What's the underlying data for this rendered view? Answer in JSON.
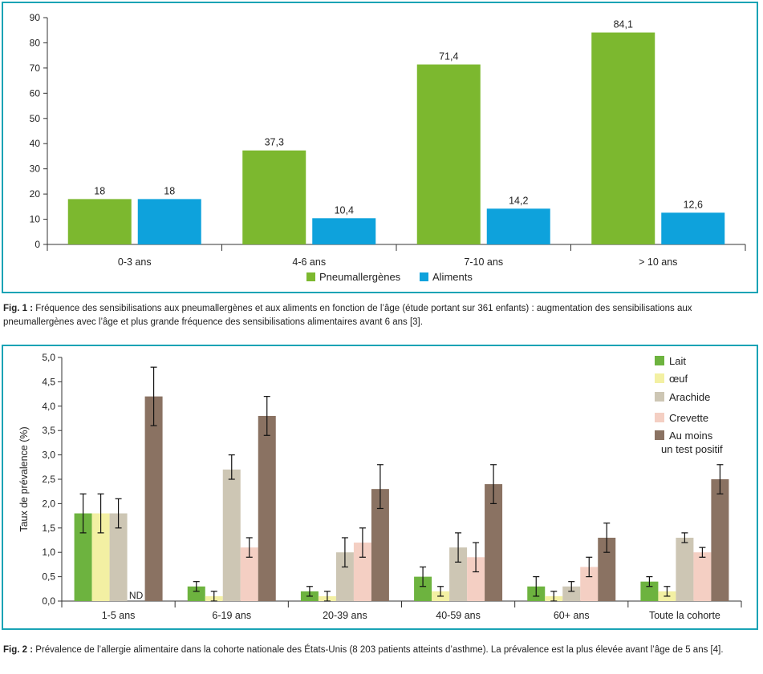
{
  "chart_data": [
    {
      "type": "bar",
      "categories": [
        "0-3 ans",
        "4-6 ans",
        "7-10 ans",
        "> 10 ans"
      ],
      "series": [
        {
          "name": "Pneumallergènes",
          "values": [
            18,
            37.3,
            71.4,
            84.1
          ],
          "labels": [
            "18",
            "37,3",
            "71,4",
            "84,1"
          ],
          "color": "#7cb82f"
        },
        {
          "name": "Aliments",
          "values": [
            18,
            10.4,
            14.2,
            12.6
          ],
          "labels": [
            "18",
            "10,4",
            "14,2",
            "12,6"
          ],
          "color": "#0ea2dc"
        }
      ],
      "ylim": [
        0,
        90
      ],
      "yticks": [
        0,
        10,
        20,
        30,
        40,
        50,
        60,
        70,
        80,
        90
      ],
      "ytick_labels": [
        "0",
        "10",
        "20",
        "30",
        "40",
        "50",
        "60",
        "70",
        "80",
        "90"
      ],
      "ylabel": "",
      "legend_position": "bottom"
    },
    {
      "type": "bar",
      "categories": [
        "1-5 ans",
        "6-19 ans",
        "20-39 ans",
        "40-59 ans",
        "60+ ans",
        "Toute la cohorte"
      ],
      "series": [
        {
          "name": "Lait",
          "values": [
            1.8,
            0.3,
            0.2,
            0.5,
            0.3,
            0.4
          ],
          "error_low": [
            1.4,
            0.2,
            0.1,
            0.3,
            0.1,
            0.3
          ],
          "error_high": [
            2.2,
            0.4,
            0.3,
            0.7,
            0.5,
            0.5
          ],
          "color": "#6db33f"
        },
        {
          "name": "œuf",
          "values": [
            1.8,
            0.1,
            0.1,
            0.2,
            0.1,
            0.2
          ],
          "error_low": [
            1.4,
            0.0,
            0.0,
            0.1,
            0.0,
            0.1
          ],
          "error_high": [
            2.2,
            0.2,
            0.2,
            0.3,
            0.2,
            0.3
          ],
          "color": "#f3f0a3"
        },
        {
          "name": "Arachide",
          "values": [
            1.8,
            2.7,
            1.0,
            1.1,
            0.3,
            1.3
          ],
          "error_low": [
            1.5,
            2.5,
            0.7,
            0.8,
            0.2,
            1.2
          ],
          "error_high": [
            2.1,
            3.0,
            1.3,
            1.4,
            0.4,
            1.4
          ],
          "color": "#cdc6b4"
        },
        {
          "name": "Crevette",
          "values": [
            null,
            1.1,
            1.2,
            0.9,
            0.7,
            1.0
          ],
          "error_low": [
            null,
            0.9,
            0.9,
            0.6,
            0.5,
            0.9
          ],
          "error_high": [
            null,
            1.3,
            1.5,
            1.2,
            0.9,
            1.1
          ],
          "color": "#f4cfc3"
        },
        {
          "name": "Au moins un test positif",
          "name_lines": [
            "Au moins",
            "un test positif"
          ],
          "values": [
            4.2,
            3.8,
            2.3,
            2.4,
            1.3,
            2.5
          ],
          "error_low": [
            3.6,
            3.4,
            1.9,
            2.0,
            1.0,
            2.2
          ],
          "error_high": [
            4.8,
            4.2,
            2.8,
            2.8,
            1.6,
            2.8
          ],
          "color": "#8a7262"
        }
      ],
      "annotations": [
        {
          "text": "ND",
          "category": "1-5 ans",
          "series": "Crevette"
        }
      ],
      "ylim": [
        0,
        5
      ],
      "yticks": [
        0,
        0.5,
        1,
        1.5,
        2,
        2.5,
        3,
        3.5,
        4,
        4.5,
        5
      ],
      "ytick_labels": [
        "0,0",
        "0,5",
        "1,0",
        "1,5",
        "2,0",
        "2,5",
        "3,0",
        "3,5",
        "4,0",
        "4,5",
        "5,0"
      ],
      "ylabel": "Taux de prévalence (%)",
      "legend_position": "top-right"
    }
  ],
  "captions": {
    "fig1_label": "Fig. 1 :",
    "fig1_text": " Fréquence des sensibilisations aux pneumallergènes et aux aliments en fonction de l’âge (étude portant sur 361 enfants) : augmentation des sensibilisations aux pneumallergènes avec l’âge et plus grande fréquence des sensibilisations alimentaires avant 6 ans [3].",
    "fig2_label": "Fig. 2 :",
    "fig2_text": " Prévalence de l’allergie alimentaire dans la cohorte nationale des États-Unis (8 203 patients atteints d’asthme). La prévalence est la plus élevée avant l’âge de 5 ans [4]."
  }
}
